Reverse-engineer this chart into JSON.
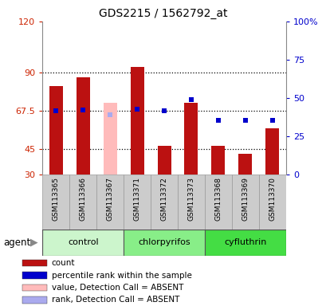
{
  "title": "GDS2215 / 1562792_at",
  "samples": [
    "GSM113365",
    "GSM113366",
    "GSM113367",
    "GSM113371",
    "GSM113372",
    "GSM113373",
    "GSM113368",
    "GSM113369",
    "GSM113370"
  ],
  "groups": [
    {
      "name": "control",
      "indices": [
        0,
        1,
        2
      ],
      "color": "#ccf5cc"
    },
    {
      "name": "chlorpyrifos",
      "indices": [
        3,
        4,
        5
      ],
      "color": "#88ee88"
    },
    {
      "name": "cyfluthrin",
      "indices": [
        6,
        7,
        8
      ],
      "color": "#44dd44"
    }
  ],
  "bar_values": [
    82,
    87,
    null,
    93,
    47,
    72,
    47,
    42,
    57
  ],
  "bar_colors": [
    "#bb1111",
    "#bb1111",
    null,
    "#bb1111",
    "#bb1111",
    "#bb1111",
    "#bb1111",
    "#bb1111",
    "#bb1111"
  ],
  "absent_bar_values": [
    null,
    null,
    72,
    null,
    null,
    null,
    null,
    null,
    null
  ],
  "absent_bar_color": "#ffbbbb",
  "rank_values": [
    67.5,
    68,
    65,
    68.5,
    67.5,
    74,
    62,
    62,
    62
  ],
  "rank_colors": [
    "#0000cc",
    "#0000cc",
    "#aaaaee",
    "#0000cc",
    "#0000cc",
    "#0000cc",
    "#0000cc",
    "#0000cc",
    "#0000cc"
  ],
  "ylim_left": [
    30,
    120
  ],
  "ylim_right": [
    0,
    100
  ],
  "yticks_left": [
    30,
    45,
    67.5,
    90,
    120
  ],
  "yticks_right": [
    0,
    25,
    50,
    75,
    100
  ],
  "ytick_labels_left": [
    "30",
    "45",
    "67.5",
    "90",
    "120"
  ],
  "ytick_labels_right": [
    "0",
    "25",
    "50",
    "75",
    "100%"
  ],
  "hlines": [
    45,
    67.5,
    90
  ],
  "legend_items": [
    {
      "color": "#bb1111",
      "label": "count"
    },
    {
      "color": "#0000cc",
      "label": "percentile rank within the sample"
    },
    {
      "color": "#ffbbbb",
      "label": "value, Detection Call = ABSENT"
    },
    {
      "color": "#aaaaee",
      "label": "rank, Detection Call = ABSENT"
    }
  ],
  "agent_label": "agent",
  "bar_width": 0.5,
  "rank_marker_size": 5,
  "background_color": "#ffffff",
  "tick_color_left": "#cc2200",
  "tick_color_right": "#0000cc",
  "sample_box_color": "#cccccc",
  "sample_box_edge": "#999999"
}
